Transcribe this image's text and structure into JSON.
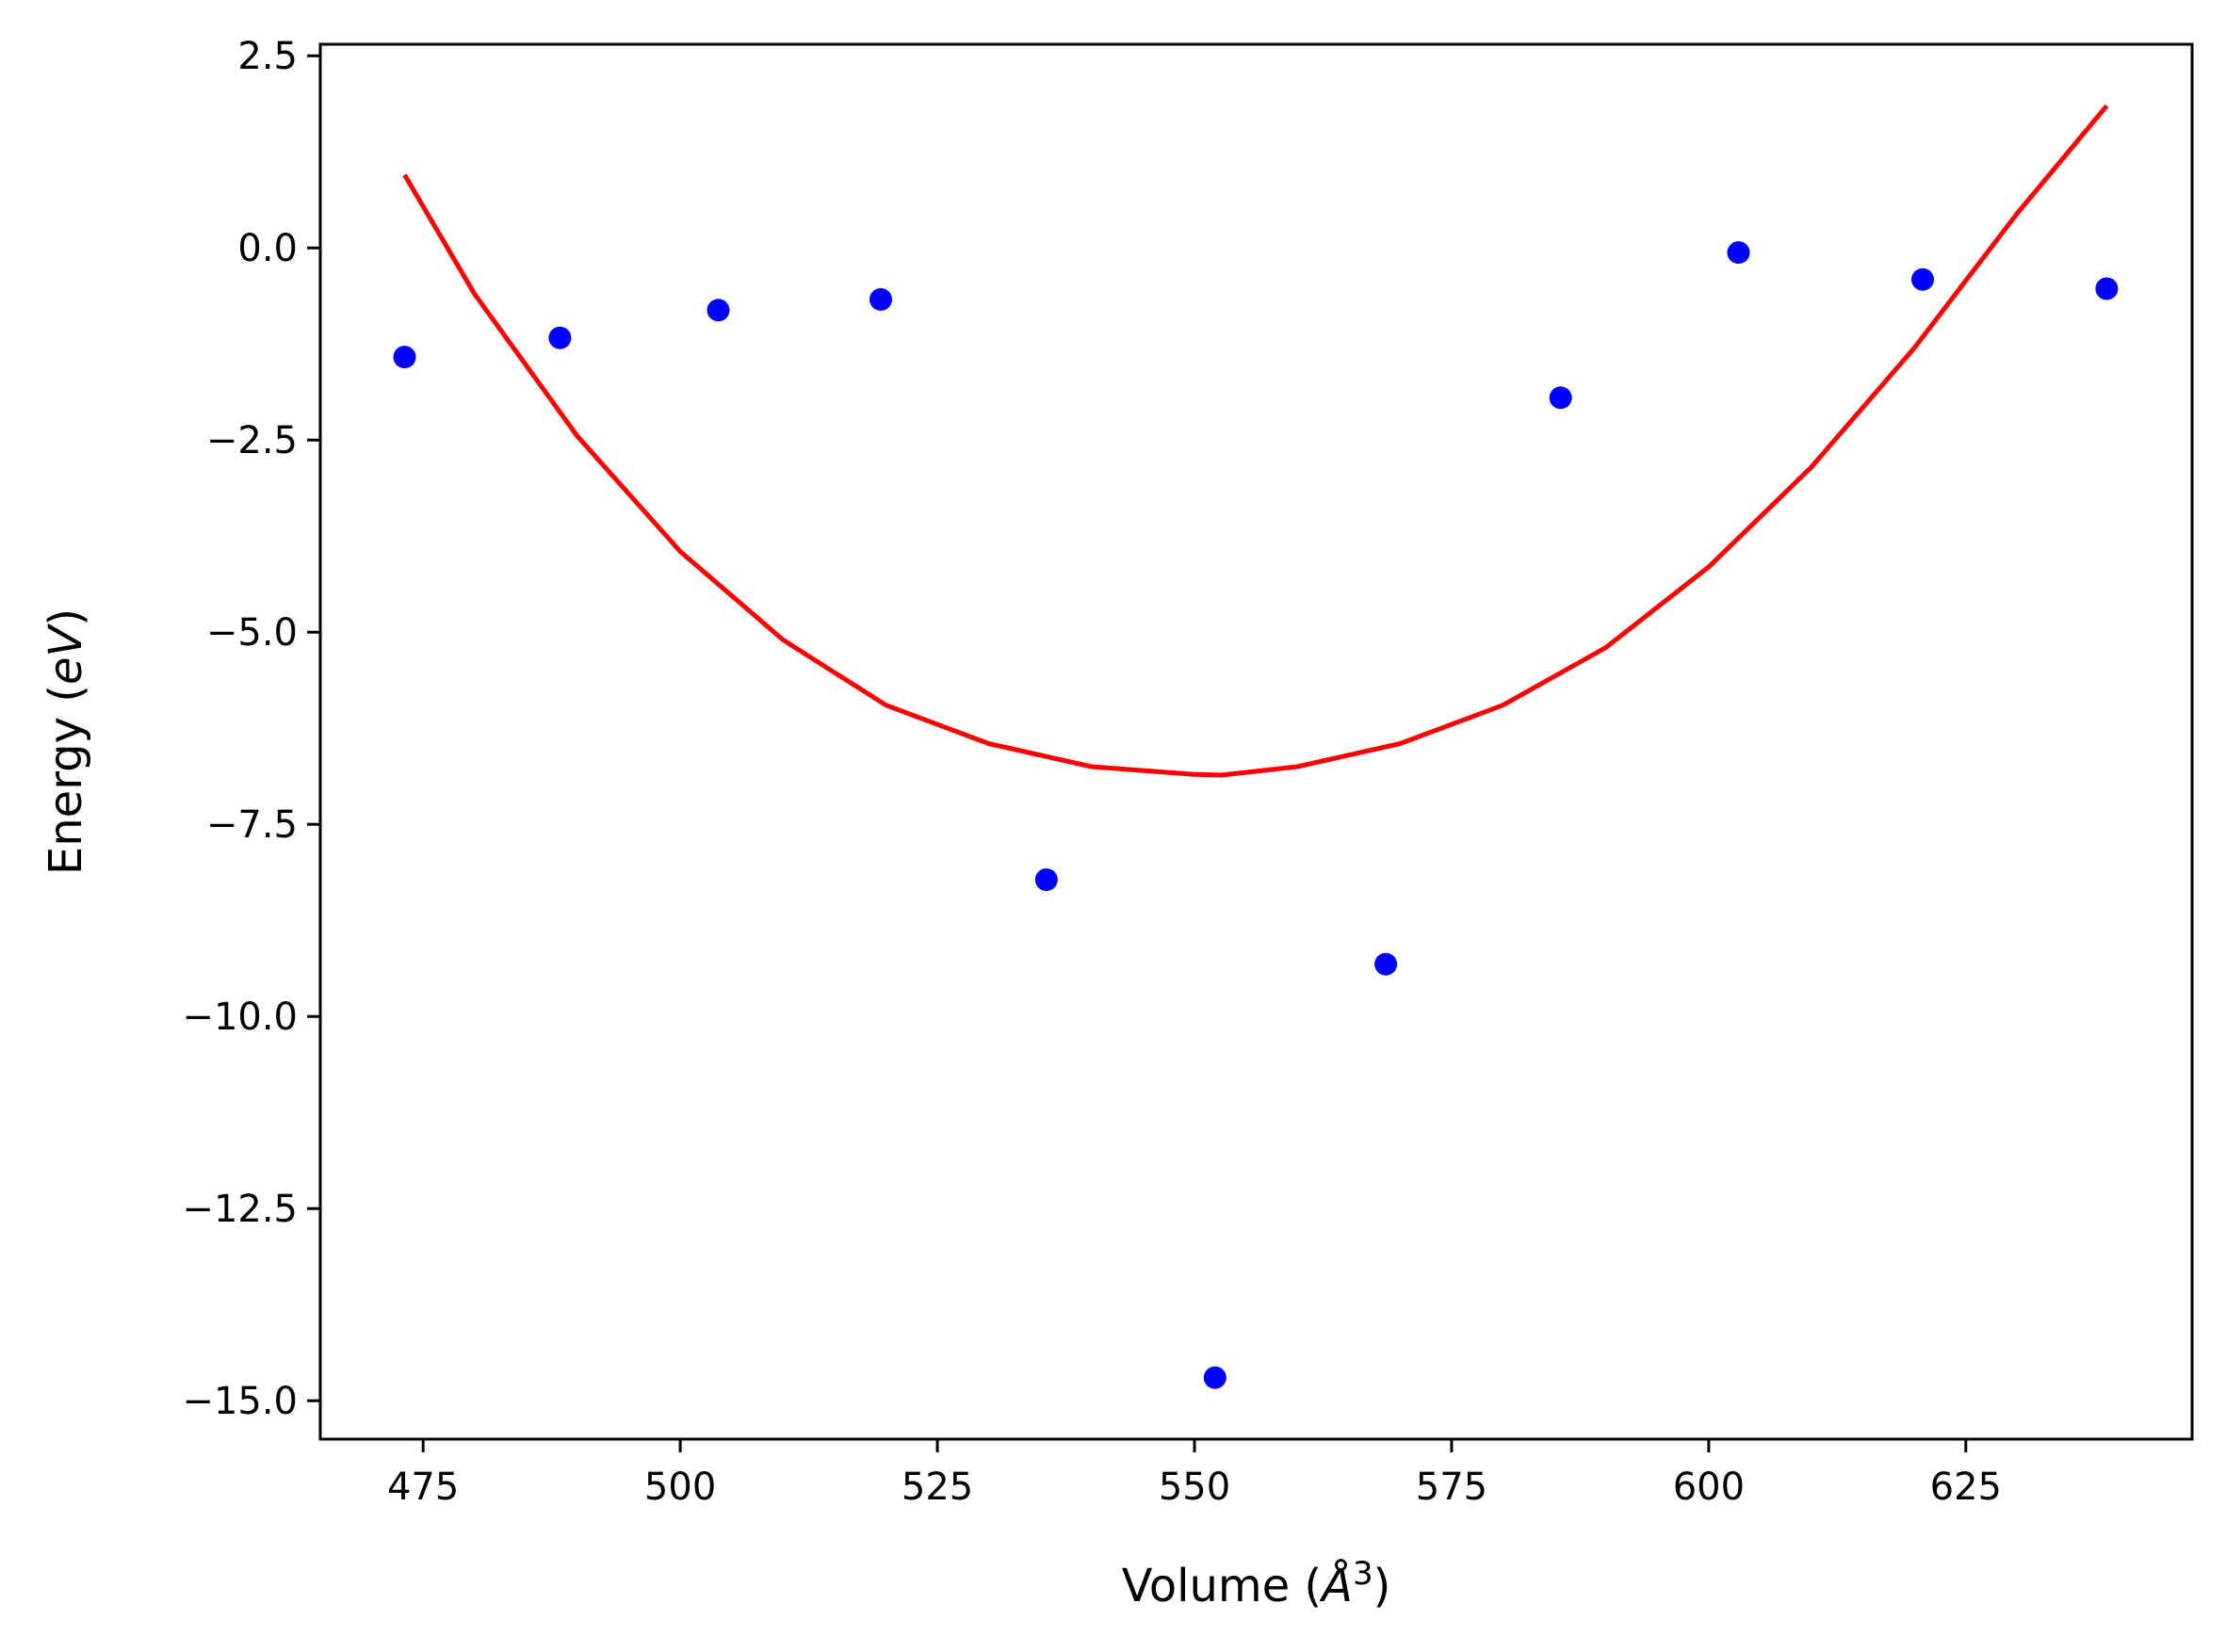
{
  "chart_data": {
    "type": "scatter",
    "title": "",
    "xlabel": {
      "prefix": "Volume (",
      "symbol": "Å",
      "exponent": "3",
      "suffix": ")"
    },
    "ylabel": {
      "prefix": "Energy (",
      "unit": "eV",
      "suffix": ")"
    },
    "xlim": [
      465,
      647
    ],
    "ylim": [
      -15.5,
      2.65
    ],
    "xticks": [
      475,
      500,
      525,
      550,
      575,
      600,
      625
    ],
    "xtick_labels": [
      "475",
      "500",
      "525",
      "550",
      "575",
      "600",
      "625"
    ],
    "yticks": [
      2.5,
      0.0,
      -2.5,
      -5.0,
      -7.5,
      -10.0,
      -12.5,
      -15.0
    ],
    "ytick_labels": [
      "2.5",
      "0.0",
      "−2.5",
      "−5.0",
      "−7.5",
      "−10.0",
      "−12.5",
      "−15.0"
    ],
    "grid": false,
    "series": [
      {
        "kind": "points",
        "color": "#0000ff",
        "x": [
          473.2,
          488.3,
          503.7,
          519.5,
          535.6,
          552.0,
          568.6,
          585.6,
          602.9,
          620.8,
          638.7
        ],
        "y": [
          -1.42,
          -1.17,
          -0.81,
          -0.67,
          -8.22,
          -14.7,
          -9.32,
          -1.95,
          -0.06,
          -0.41,
          -0.53
        ]
      },
      {
        "kind": "fit-curve",
        "color": "#ff0000",
        "x": [
          473.2,
          480,
          490,
          500,
          510,
          520,
          530,
          540,
          550,
          552.6,
          560,
          570,
          580,
          590,
          600,
          610,
          620,
          630,
          638.7
        ],
        "y": [
          0.95,
          -0.6,
          -2.45,
          -3.95,
          -5.1,
          -5.95,
          -6.45,
          -6.75,
          -6.85,
          -6.86,
          -6.75,
          -6.45,
          -5.95,
          -5.2,
          -4.15,
          -2.85,
          -1.3,
          0.45,
          1.85
        ]
      }
    ]
  }
}
